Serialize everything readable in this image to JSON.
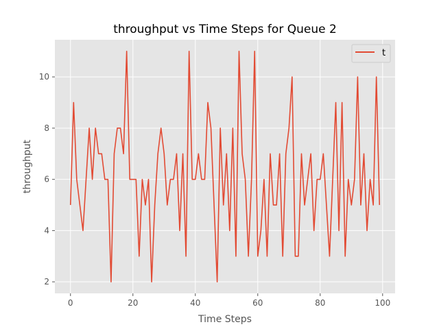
{
  "chart_data": {
    "type": "line",
    "title": "throughput vs Time Steps for Queue 2",
    "xlabel": "Time Steps",
    "ylabel": "throughput",
    "xlim": [
      -5,
      104
    ],
    "ylim": [
      1.55,
      11.45
    ],
    "xticks": [
      "0",
      "20",
      "40",
      "60",
      "80",
      "100"
    ],
    "yticks": [
      "2",
      "4",
      "6",
      "8",
      "10"
    ],
    "grid": true,
    "legend_position": "top-right",
    "style": {
      "background": "#e5e5e5",
      "grid_color": "#ffffff",
      "line_color": "#e24a33"
    },
    "series": [
      {
        "name": "t",
        "x": [
          0,
          1,
          2,
          3,
          4,
          5,
          6,
          7,
          8,
          9,
          10,
          11,
          12,
          13,
          14,
          15,
          16,
          17,
          18,
          19,
          20,
          21,
          22,
          23,
          24,
          25,
          26,
          27,
          28,
          29,
          30,
          31,
          32,
          33,
          34,
          35,
          36,
          37,
          38,
          39,
          40,
          41,
          42,
          43,
          44,
          45,
          46,
          47,
          48,
          49,
          50,
          51,
          52,
          53,
          54,
          55,
          56,
          57,
          58,
          59,
          60,
          61,
          62,
          63,
          64,
          65,
          66,
          67,
          68,
          69,
          70,
          71,
          72,
          73,
          74,
          75,
          76,
          77,
          78,
          79,
          80,
          81,
          82,
          83,
          84,
          85,
          86,
          87,
          88,
          89,
          90,
          91,
          92,
          93,
          94,
          95,
          96,
          97,
          98,
          99
        ],
        "values": [
          5,
          9,
          6,
          5,
          4,
          6,
          8,
          6,
          8,
          7,
          7,
          6,
          6,
          2,
          7,
          8,
          8,
          7,
          11,
          6,
          6,
          6,
          3,
          6,
          5,
          6,
          2,
          5,
          7,
          8,
          7,
          5,
          6,
          6,
          7,
          4,
          7,
          3,
          11,
          6,
          6,
          7,
          6,
          6,
          9,
          8,
          5,
          2,
          8,
          5,
          7,
          4,
          8,
          3,
          11,
          7,
          6,
          3,
          6,
          11,
          3,
          4,
          6,
          3,
          7,
          5,
          5,
          7,
          3,
          7,
          8,
          10,
          3,
          3,
          7,
          5,
          6,
          7,
          4,
          6,
          6,
          7,
          5,
          3,
          6,
          9,
          4,
          9,
          3,
          6,
          5,
          6,
          10,
          5,
          7,
          4,
          6,
          5,
          10,
          5
        ]
      }
    ]
  }
}
